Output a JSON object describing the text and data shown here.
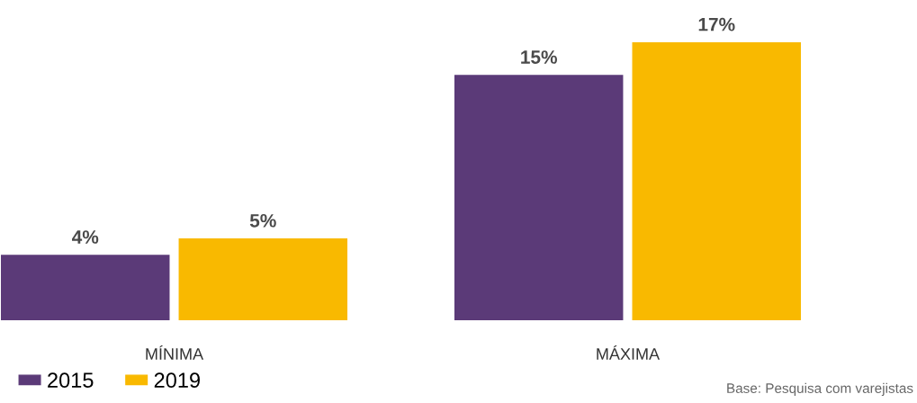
{
  "chart_data": {
    "type": "bar",
    "categories": [
      "MÍNIMA",
      "MÁXIMA"
    ],
    "series": [
      {
        "name": "2015",
        "color": "#5b3a78",
        "values": [
          4,
          15
        ],
        "value_labels": [
          "4%",
          "15%"
        ]
      },
      {
        "name": "2019",
        "color": "#f9b900",
        "values": [
          5,
          17
        ],
        "value_labels": [
          "5%",
          "17%"
        ]
      }
    ],
    "legend": "bottom left",
    "grid": false,
    "annotations": [
      "Base: Pesquisa com varejistas"
    ]
  }
}
